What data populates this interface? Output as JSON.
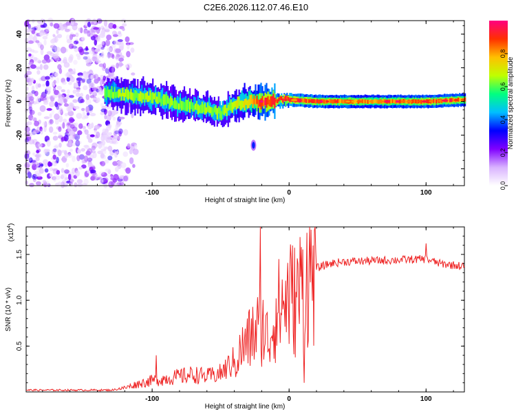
{
  "figure": {
    "title": "C2E6.2026.112.07.46.E10"
  },
  "chart_data": [
    {
      "type": "heatmap",
      "title": "C2E6.2026.112.07.46.E10",
      "xlabel": "Height of straight line (km)",
      "ylabel": "Frequency (Hz)",
      "xlim": [
        -192,
        128
      ],
      "ylim": [
        -50,
        48
      ],
      "xticks": [
        -100,
        0,
        100
      ],
      "xtick_labels": [
        "-100",
        "0",
        "100"
      ],
      "yticks": [
        -40,
        -20,
        0,
        20,
        40
      ],
      "ytick_labels": [
        "-40",
        "-20",
        "0",
        "20",
        "40"
      ],
      "colorbar": {
        "label": "Normalized spectral amplitude",
        "range": [
          0,
          1
        ],
        "ticks": [
          0.0,
          0.2,
          0.4,
          0.6,
          0.8
        ],
        "tick_labels": [
          "0.0",
          "0.2",
          "0.4",
          "0.6",
          "0.8"
        ],
        "colors": [
          "#ffffff",
          "#d9b3ff",
          "#8000ff",
          "#0000ff",
          "#00bfff",
          "#00ff80",
          "#c0ff00",
          "#ffc000",
          "#ff3000",
          "#ff0080"
        ]
      },
      "features": {
        "noise_region_km": [
          -192,
          -122
        ],
        "signal_band": {
          "x": [
            -135,
            -120,
            -100,
            -80,
            -60,
            -50,
            -40,
            -30,
            -20,
            0,
            20,
            60,
            100,
            128
          ],
          "center_hz": [
            5,
            4,
            2,
            -2,
            -4,
            -7,
            -2,
            0,
            0,
            1,
            0,
            0,
            0,
            1
          ],
          "amplitude": [
            0.4,
            0.45,
            0.45,
            0.42,
            0.45,
            0.45,
            0.5,
            0.55,
            0.85,
            0.85,
            0.8,
            0.7,
            0.8,
            0.7
          ]
        },
        "isolated_blob": {
          "x_km": -26,
          "freq_hz": -26,
          "amplitude": 0.35
        }
      }
    },
    {
      "type": "line",
      "xlabel": "Height of straight line (km)",
      "ylabel": "SNR (10 * v/v)",
      "multiplier_label": "(x10",
      "multiplier_exponent": "4",
      "xlim": [
        -192,
        128
      ],
      "ylim": [
        0,
        1.8
      ],
      "xticks": [
        -100,
        0,
        100
      ],
      "xtick_labels": [
        "-100",
        "0",
        "100"
      ],
      "yticks": [
        0.5,
        1.0,
        1.5
      ],
      "ytick_labels": [
        "0.5",
        "1.0",
        "1.5"
      ],
      "color": "#ee2222",
      "envelope": {
        "x": [
          -192,
          -130,
          -120,
          -110,
          -100,
          -80,
          -70,
          -60,
          -50,
          -40,
          -35,
          -30,
          -25,
          -20,
          -15,
          -10,
          -5,
          0,
          5,
          10,
          15,
          20,
          30,
          40,
          60,
          80,
          100,
          110,
          128
        ],
        "y": [
          0.02,
          0.02,
          0.04,
          0.08,
          0.11,
          0.15,
          0.17,
          0.15,
          0.18,
          0.3,
          0.45,
          0.55,
          0.65,
          0.75,
          0.55,
          0.85,
          0.95,
          1.05,
          1.0,
          1.2,
          1.3,
          1.35,
          1.4,
          1.42,
          1.43,
          1.44,
          1.45,
          1.4,
          1.37
        ]
      },
      "peaks": [
        {
          "x": -21,
          "y": 1.8
        },
        {
          "x": -97,
          "y": 0.4
        },
        {
          "x": 9,
          "y": 1.58
        },
        {
          "x": 100,
          "y": 1.62
        },
        {
          "x": 11,
          "y": 0.1
        }
      ]
    }
  ]
}
